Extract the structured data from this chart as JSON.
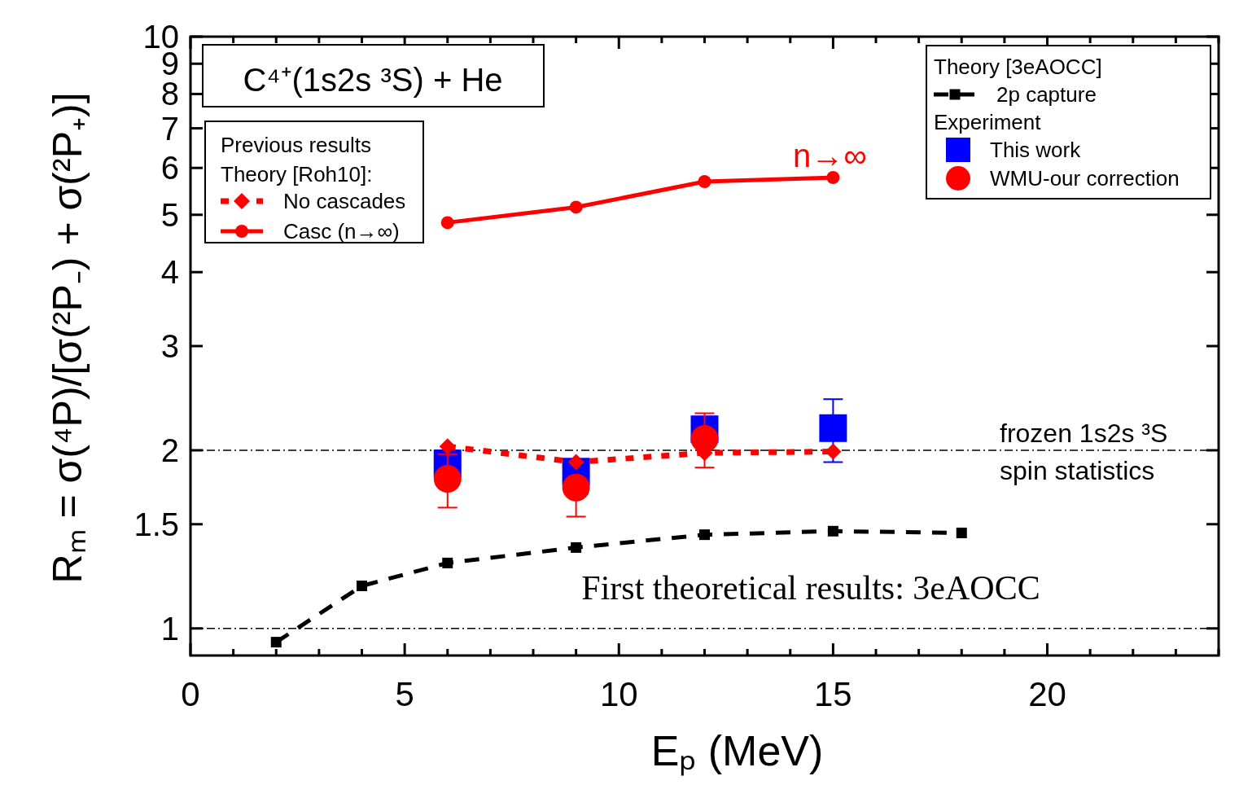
{
  "chart_data": {
    "type": "line",
    "title": "C⁴⁺(1s2s ³S) + He",
    "xlabel": "Eₚ (MeV)",
    "ylabel": "Rₘ = σ(⁴P)/[σ(²P₋) + σ(²P₊)]",
    "log": "y",
    "xlim": [
      0,
      24
    ],
    "ylim": [
      0.9,
      10
    ],
    "xticks": [
      0,
      {
        "value": 1,
        "label": null
      },
      {
        "value": 2,
        "label": null
      },
      {
        "value": 3,
        "label": null
      },
      {
        "value": 4,
        "label": null
      },
      5,
      {
        "value": 6,
        "label": null
      },
      {
        "value": 7,
        "label": null
      },
      {
        "value": 8,
        "label": null
      },
      {
        "value": 9,
        "label": null
      },
      10,
      {
        "value": 11,
        "label": null
      },
      {
        "value": 12,
        "label": null
      },
      {
        "value": 13,
        "label": null
      },
      {
        "value": 14,
        "label": null
      },
      15,
      {
        "value": 16,
        "label": null
      },
      {
        "value": 17,
        "label": null
      },
      {
        "value": 18,
        "label": null
      },
      {
        "value": 19,
        "label": null
      },
      20,
      {
        "value": 21,
        "label": null
      },
      {
        "value": 22,
        "label": null
      },
      {
        "value": 23,
        "label": null
      },
      {
        "value": 24,
        "label": null
      }
    ],
    "yticks": [
      1,
      1.5,
      2,
      3,
      4,
      5,
      6,
      7,
      8,
      9,
      10
    ],
    "legend": "top right",
    "series": [
      {
        "name": "2p capture",
        "color": "#000000",
        "marker": "square",
        "line_style": "dashed",
        "x": [
          2,
          4,
          6,
          9,
          12,
          15,
          18
        ],
        "values": [
          0.948,
          1.18,
          1.29,
          1.37,
          1.44,
          1.46,
          1.45
        ]
      },
      {
        "name": "This work",
        "type": "scatter",
        "color": "#0000ff",
        "marker": "square",
        "x": [
          6,
          9,
          12,
          15
        ],
        "values": [
          1.9,
          1.84,
          2.17,
          2.18
        ],
        "errors": [
          null,
          null,
          null,
          [
            1.91,
            2.44
          ]
        ]
      },
      {
        "name": "WMU-our correction",
        "type": "scatter",
        "color": "#ff0000",
        "marker": "circle",
        "x": [
          6,
          9,
          12
        ],
        "values": [
          1.79,
          1.73,
          2.09
        ],
        "errors": [
          [
            1.6,
            1.97
          ],
          [
            1.545,
            1.73
          ],
          [
            1.87,
            2.31
          ]
        ]
      },
      {
        "name": "No cascades",
        "color": "#ff0000",
        "marker": "diamond",
        "line_style": "dotted",
        "x": [
          6,
          9,
          12,
          15
        ],
        "values": [
          2.03,
          1.91,
          1.98,
          1.99
        ]
      },
      {
        "name": "Casc (n→∞)",
        "color": "#ff0000",
        "marker": "circle",
        "line_style": "solid",
        "x": [
          6,
          9,
          12,
          15
        ],
        "values": [
          4.85,
          5.15,
          5.69,
          5.78
        ]
      }
    ],
    "ref_lines": [
      {
        "axis": "y",
        "value": 2,
        "label": "frozen 1s2s ³S\nspin statistics",
        "color": "#000000",
        "line_style": "dashdot"
      },
      {
        "axis": "y",
        "value": 1,
        "color": "#000000",
        "line_style": "dashdot"
      }
    ],
    "annotations": [
      "Previous results",
      "Theory [Roh10]:",
      "Theory [3eAOCC]",
      "Experiment",
      "n→∞",
      "First theoretical results: 3eAOCC"
    ]
  }
}
